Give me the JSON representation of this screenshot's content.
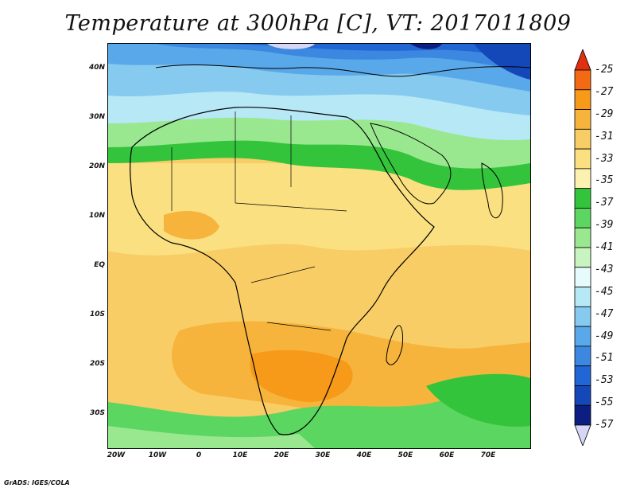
{
  "title": "Temperature at 300hPa [C], VT: 2017011809",
  "footer": "GrADS: IGES/COLA",
  "lat_labels": [
    "40N",
    "30N",
    "20N",
    "10N",
    "EQ",
    "10S",
    "20S",
    "30S"
  ],
  "lon_labels": [
    "20W",
    "10W",
    "0",
    "10E",
    "20E",
    "30E",
    "40E",
    "50E",
    "60E",
    "70E"
  ],
  "colorbar": {
    "levels": [
      "-25",
      "-27",
      "-29",
      "-31",
      "-33",
      "-35",
      "-37",
      "-39",
      "-41",
      "-43",
      "-45",
      "-47",
      "-49",
      "-51",
      "-53",
      "-55",
      "-57"
    ],
    "colors": [
      "#e03010",
      "#f26b12",
      "#f79a1a",
      "#f7b43c",
      "#f9cd66",
      "#fae080",
      "#fdf1b0",
      "#33c43c",
      "#5bd660",
      "#99e890",
      "#c8f4c0",
      "#e6fbfb",
      "#b7e8f5",
      "#86caf0",
      "#59a9ea",
      "#3c88e0",
      "#2265d4",
      "#1447b8",
      "#0c1f80",
      "#d6d6f6"
    ]
  },
  "map": {
    "lon_range": [
      "20W",
      "80E"
    ],
    "lat_range": [
      "37S",
      "45N"
    ],
    "field": "temperature",
    "units": "C",
    "level": "300hPa"
  }
}
